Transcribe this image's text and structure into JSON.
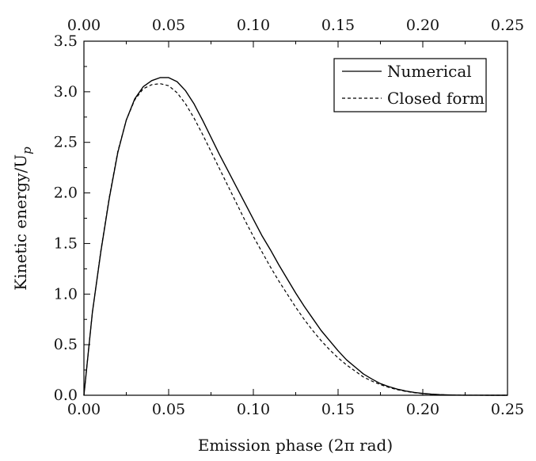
{
  "chart_data": {
    "type": "line",
    "xlabel": "Emission phase (2π rad)",
    "ylabel": "Kinetic energy/U",
    "ylabel_sub": "p",
    "xlim": [
      0,
      0.25
    ],
    "ylim": [
      0,
      3.5
    ],
    "x_ticks": [
      "0.00",
      "0.05",
      "0.10",
      "0.15",
      "0.20",
      "0.25"
    ],
    "x_tick_values": [
      0,
      0.05,
      0.1,
      0.15,
      0.2,
      0.25
    ],
    "y_ticks": [
      "0.0",
      "0.5",
      "1.0",
      "1.5",
      "2.0",
      "2.5",
      "3.0",
      "3.5"
    ],
    "y_tick_values": [
      0,
      0.5,
      1.0,
      1.5,
      2.0,
      2.5,
      3.0,
      3.5
    ],
    "top_axis_mirrors_bottom": true,
    "grid": false,
    "legend_position": "top-right",
    "series": [
      {
        "name": "Numerical",
        "style": "solid",
        "color": "#000000",
        "x": [
          0,
          0.005,
          0.01,
          0.015,
          0.02,
          0.025,
          0.03,
          0.035,
          0.04,
          0.045,
          0.05,
          0.055,
          0.06,
          0.065,
          0.07,
          0.075,
          0.08,
          0.085,
          0.09,
          0.095,
          0.1,
          0.105,
          0.11,
          0.115,
          0.12,
          0.125,
          0.13,
          0.135,
          0.14,
          0.145,
          0.15,
          0.155,
          0.16,
          0.165,
          0.17,
          0.175,
          0.18,
          0.185,
          0.19,
          0.195,
          0.2,
          0.205,
          0.21,
          0.215,
          0.22,
          0.225,
          0.23,
          0.235,
          0.24,
          0.245,
          0.25
        ],
        "y": [
          0.0,
          0.82,
          1.42,
          1.95,
          2.4,
          2.72,
          2.93,
          3.05,
          3.11,
          3.14,
          3.14,
          3.1,
          3.01,
          2.88,
          2.72,
          2.55,
          2.38,
          2.22,
          2.06,
          1.9,
          1.74,
          1.58,
          1.44,
          1.29,
          1.15,
          1.01,
          0.88,
          0.76,
          0.64,
          0.54,
          0.44,
          0.35,
          0.28,
          0.21,
          0.16,
          0.115,
          0.085,
          0.06,
          0.042,
          0.028,
          0.018,
          0.011,
          0.006,
          0.003,
          0.0015,
          0.0008,
          0.0004,
          0.0002,
          0.0001,
          0.0,
          0.0
        ]
      },
      {
        "name": "Closed form",
        "style": "dashed",
        "color": "#000000",
        "x": [
          0,
          0.005,
          0.01,
          0.015,
          0.02,
          0.025,
          0.03,
          0.035,
          0.04,
          0.045,
          0.05,
          0.055,
          0.06,
          0.065,
          0.07,
          0.075,
          0.08,
          0.085,
          0.09,
          0.095,
          0.1,
          0.105,
          0.11,
          0.115,
          0.12,
          0.125,
          0.13,
          0.135,
          0.14,
          0.145,
          0.15,
          0.155,
          0.16,
          0.165,
          0.17,
          0.175,
          0.18,
          0.185,
          0.19,
          0.195,
          0.2,
          0.205,
          0.21,
          0.215,
          0.22,
          0.225,
          0.23,
          0.235,
          0.24,
          0.245,
          0.25
        ],
        "y": [
          0.0,
          0.82,
          1.43,
          1.96,
          2.41,
          2.72,
          2.92,
          3.03,
          3.07,
          3.08,
          3.06,
          2.99,
          2.88,
          2.74,
          2.58,
          2.41,
          2.24,
          2.07,
          1.9,
          1.73,
          1.57,
          1.42,
          1.27,
          1.13,
          1.0,
          0.87,
          0.75,
          0.64,
          0.54,
          0.45,
          0.37,
          0.3,
          0.24,
          0.18,
          0.14,
          0.105,
          0.078,
          0.055,
          0.038,
          0.025,
          0.016,
          0.01,
          0.006,
          0.003,
          0.0015,
          0.0008,
          0.0004,
          0.0002,
          0.0001,
          0.0,
          0.0
        ]
      }
    ]
  }
}
